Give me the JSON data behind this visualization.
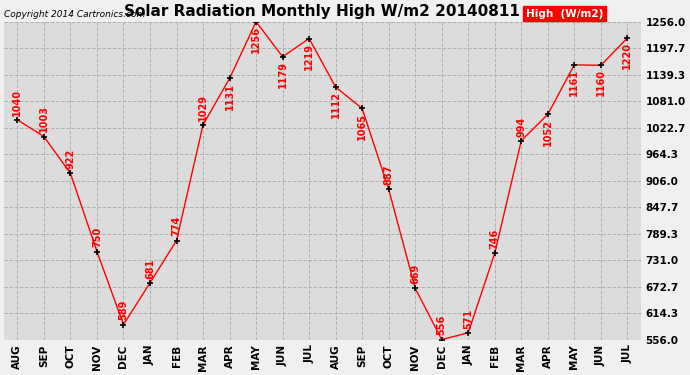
{
  "title": "Solar Radiation Monthly High W/m2 20140811",
  "copyright": "Copyright 2014 Cartronics.com",
  "legend_label": "High  (W/m2)",
  "months": [
    "AUG",
    "SEP",
    "OCT",
    "NOV",
    "DEC",
    "JAN",
    "FEB",
    "MAR",
    "APR",
    "MAY",
    "JUN",
    "JUL",
    "AUG",
    "SEP",
    "OCT",
    "NOV",
    "DEC",
    "JAN",
    "FEB",
    "MAR",
    "APR",
    "MAY",
    "JUN",
    "JUL"
  ],
  "values": [
    1040,
    1003,
    922,
    750,
    589,
    681,
    774,
    1029,
    1131,
    1256,
    1179,
    1219,
    1112,
    1065,
    887,
    669,
    556,
    571,
    746,
    994,
    1052,
    1161,
    1160,
    1220
  ],
  "line_color": "red",
  "marker_color": "black",
  "background_color": "#f0f0f0",
  "plot_bg_color": "#dcdcdc",
  "grid_color": "#b0b0b0",
  "yticks": [
    556.0,
    614.3,
    672.7,
    731.0,
    789.3,
    847.7,
    906.0,
    964.3,
    1022.7,
    1081.0,
    1139.3,
    1197.7,
    1256.0
  ],
  "ymin": 556.0,
  "ymax": 1256.0,
  "title_fontsize": 11,
  "label_fontsize": 7,
  "tick_fontsize": 7.5,
  "copyright_fontsize": 6.5,
  "legend_bg": "red",
  "legend_text_color": "white"
}
